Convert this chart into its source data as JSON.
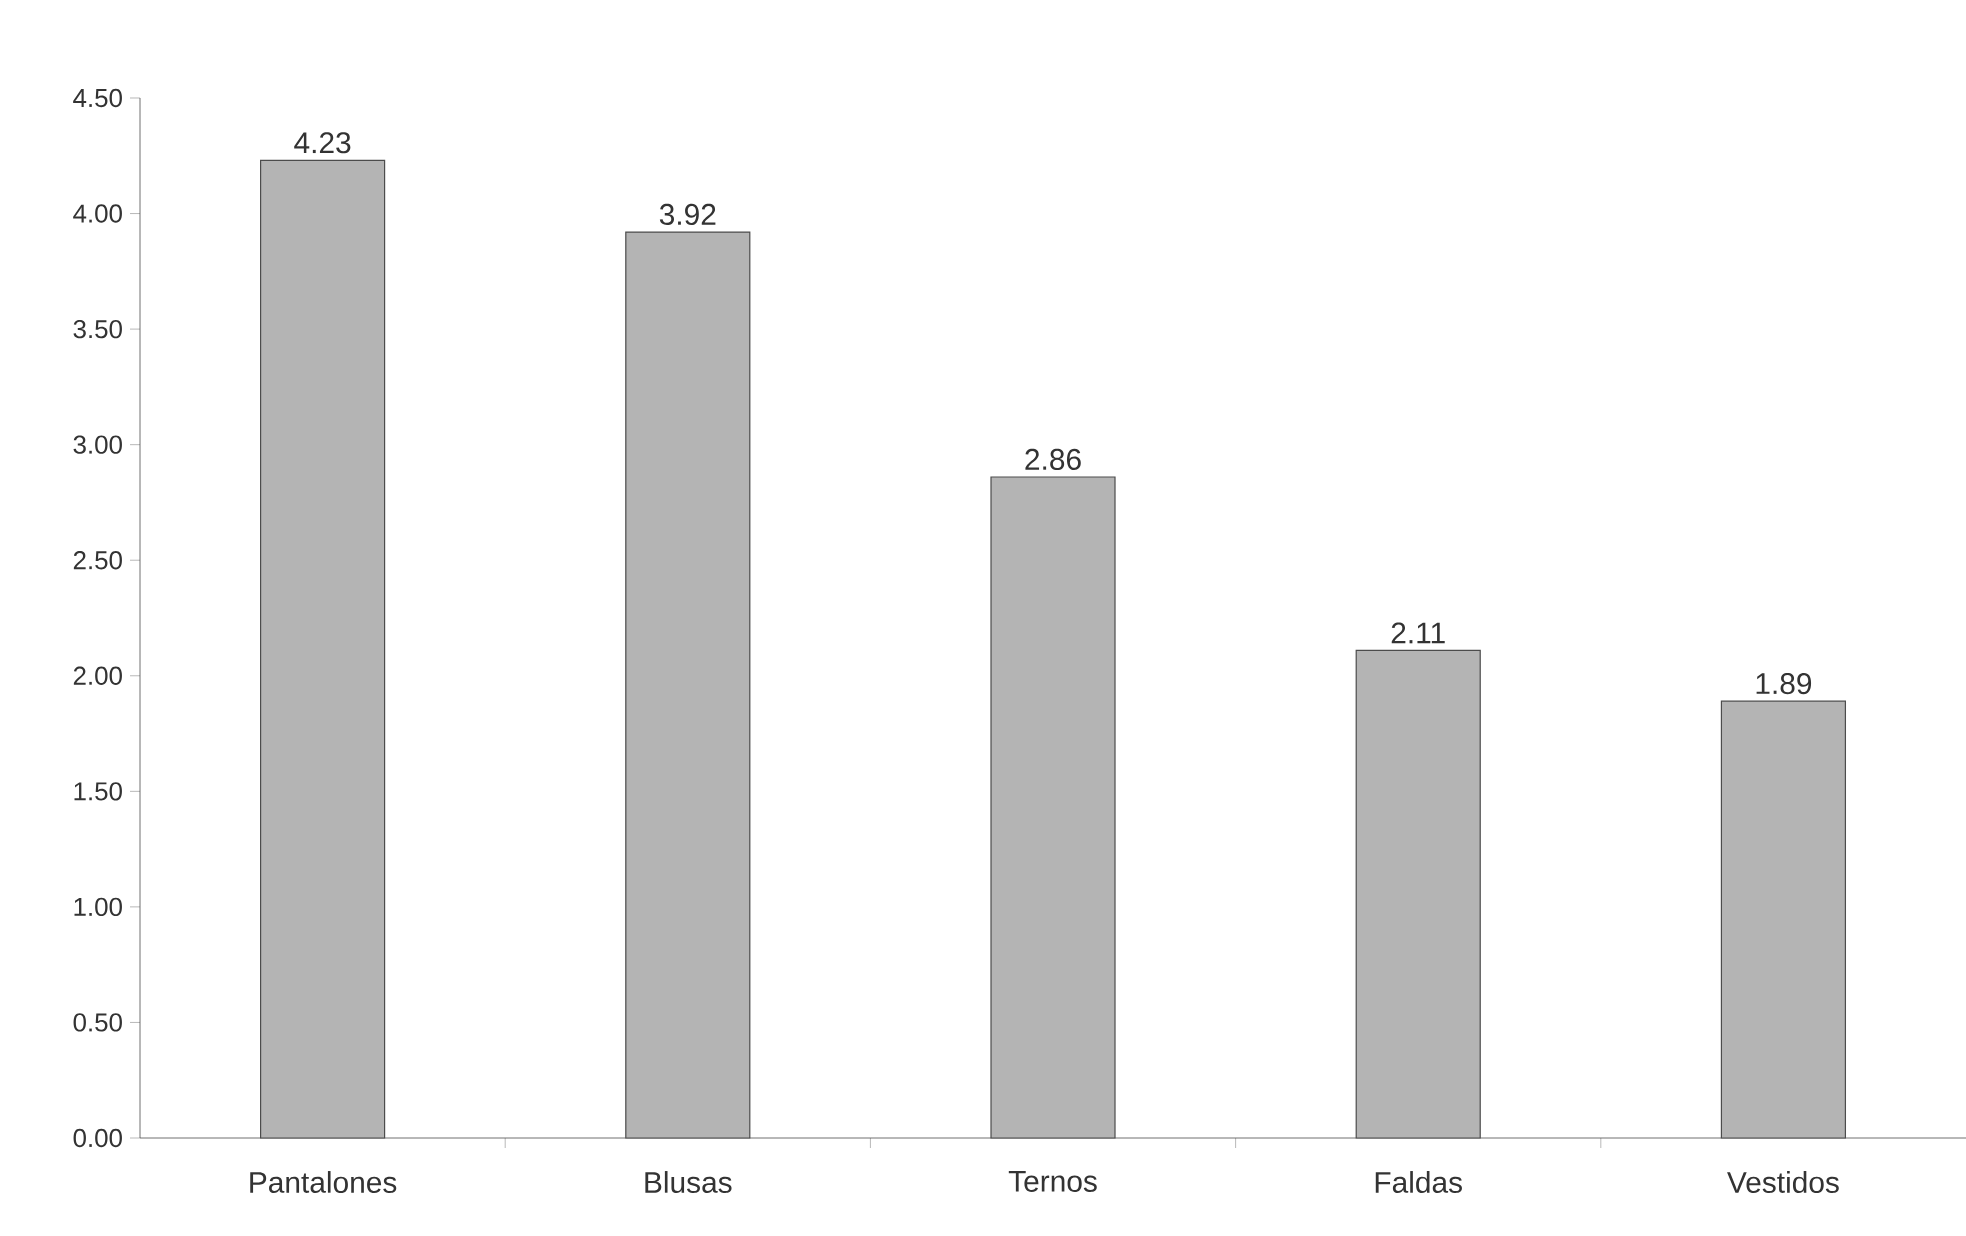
{
  "chart_data": {
    "type": "bar",
    "categories": [
      "Pantalones",
      "Blusas",
      "Ternos",
      "Faldas",
      "Vestidos"
    ],
    "values": [
      4.23,
      3.92,
      2.86,
      2.11,
      1.89
    ],
    "color": "#b4b4b4",
    "ylim": [
      0,
      4.5
    ],
    "yticks": [
      {
        "value": 0,
        "label": "0.00"
      },
      {
        "value": 0.5,
        "label": "0.50"
      },
      {
        "value": 1,
        "label": "1.00"
      },
      {
        "value": 1.5,
        "label": "1.50"
      },
      {
        "value": 2,
        "label": "2.00"
      },
      {
        "value": 2.5,
        "label": "2.50"
      },
      {
        "value": 3,
        "label": "3.00"
      },
      {
        "value": 3.5,
        "label": "3.50"
      },
      {
        "value": 4,
        "label": "4.00"
      },
      {
        "value": 4.5,
        "label": "4.50"
      }
    ],
    "data_labels": true,
    "grid": false
  }
}
